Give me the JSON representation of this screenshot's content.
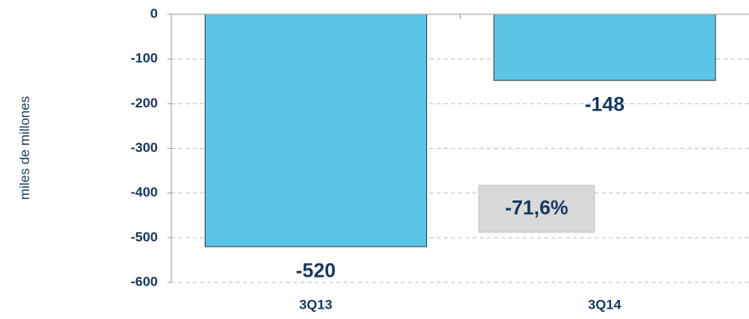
{
  "chart_data": {
    "type": "bar",
    "y_label": "miles de millones",
    "categories": [
      "3Q13",
      "3Q14"
    ],
    "values": [
      -520,
      -148
    ],
    "color": "#5bc5e8",
    "ylim": [
      -600,
      0
    ],
    "yticks": [
      0,
      -100,
      -200,
      -300,
      -400,
      -500,
      -600
    ],
    "grid": true,
    "annotation": "-71,6%"
  }
}
